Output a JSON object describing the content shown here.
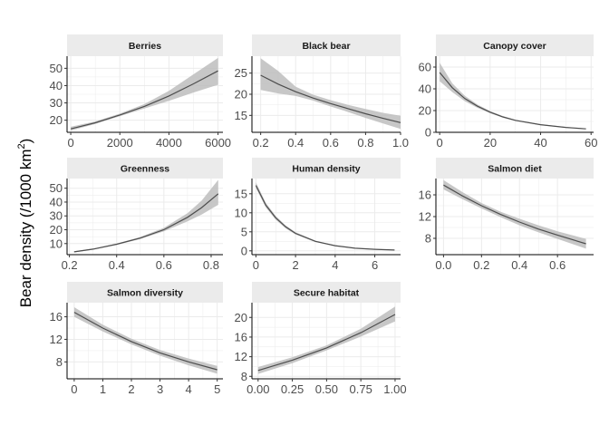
{
  "figure": {
    "ylabel_main": "Bear density (/1000 km",
    "ylabel_sup": "2",
    "ylabel_close": ")",
    "colors": {
      "line": "#4d4d4d",
      "band": "#bdbdbd",
      "strip": "#ebebeb",
      "grid": "#ebebeb",
      "axis": "#000000"
    }
  },
  "chart_data": [
    {
      "type": "line",
      "title": "Berries",
      "xlim": [
        -150,
        6200
      ],
      "ylim": [
        13,
        57
      ],
      "xticks": [
        0,
        2000,
        4000,
        6000
      ],
      "xtick_labels": [
        "0",
        "2000",
        "4000",
        "6000"
      ],
      "yticks": [
        20,
        30,
        40,
        50
      ],
      "ytick_labels": [
        "20",
        "30",
        "40",
        "50"
      ],
      "x": [
        0,
        1000,
        2000,
        3000,
        4000,
        5000,
        6000
      ],
      "y": [
        15,
        18.5,
        23,
        28,
        34,
        41,
        48.5
      ],
      "lower": [
        14,
        17.8,
        22.3,
        26.8,
        31.2,
        36,
        40.5
      ],
      "upper": [
        16.2,
        19.3,
        23.8,
        29.3,
        37,
        46.5,
        56
      ]
    },
    {
      "type": "line",
      "title": "Black bear",
      "xlim": [
        0.15,
        1.0
      ],
      "ylim": [
        11,
        29
      ],
      "xticks": [
        0.2,
        0.4,
        0.6,
        0.8,
        1.0
      ],
      "xtick_labels": [
        "0.2",
        "0.4",
        "0.6",
        "0.8",
        "1.0"
      ],
      "yticks": [
        15,
        20,
        25
      ],
      "ytick_labels": [
        "15",
        "20",
        "25"
      ],
      "x": [
        0.2,
        0.3,
        0.4,
        0.5,
        0.6,
        0.7,
        0.8,
        0.9,
        1.0
      ],
      "y": [
        24.5,
        22.4,
        20.6,
        19.1,
        17.8,
        16.6,
        15.4,
        14.3,
        13.3
      ],
      "lower": [
        21,
        20.2,
        19.6,
        18.5,
        17.1,
        15.8,
        14.4,
        13.1,
        11.8
      ],
      "upper": [
        28.5,
        25.5,
        21.8,
        19.9,
        18.6,
        17.5,
        16.5,
        15.6,
        14.9
      ]
    },
    {
      "type": "line",
      "title": "Canopy cover",
      "xlim": [
        -1.5,
        61
      ],
      "ylim": [
        0,
        70
      ],
      "xticks": [
        0,
        20,
        40,
        60
      ],
      "xtick_labels": [
        "0",
        "20",
        "40",
        "60"
      ],
      "yticks": [
        0,
        20,
        40,
        60
      ],
      "ytick_labels": [
        "0",
        "20",
        "40",
        "60"
      ],
      "x": [
        0,
        5,
        10,
        15,
        20,
        25,
        30,
        40,
        50,
        58
      ],
      "y": [
        55,
        41,
        31,
        24,
        18.5,
        14.2,
        11,
        7,
        4.5,
        3.2
      ],
      "lower": [
        47,
        37,
        28.5,
        22.5,
        17.5,
        13.5,
        10.5,
        6.6,
        4.2,
        2.9
      ],
      "upper": [
        64,
        45,
        33.5,
        25.5,
        19.5,
        15,
        11.6,
        7.5,
        4.9,
        3.6
      ]
    },
    {
      "type": "line",
      "title": "Greenness",
      "xlim": [
        0.19,
        0.85
      ],
      "ylim": [
        2,
        57
      ],
      "xticks": [
        0.2,
        0.4,
        0.6,
        0.8
      ],
      "xtick_labels": [
        "0.2",
        "0.4",
        "0.6",
        "0.8"
      ],
      "yticks": [
        10,
        20,
        30,
        40,
        50
      ],
      "ytick_labels": [
        "10",
        "20",
        "30",
        "40",
        "50"
      ],
      "x": [
        0.22,
        0.3,
        0.4,
        0.5,
        0.6,
        0.7,
        0.76,
        0.83
      ],
      "y": [
        4,
        6,
        9.5,
        14,
        20,
        29,
        36,
        46
      ],
      "lower": [
        3.6,
        5.6,
        9,
        13.3,
        18.8,
        26,
        31,
        38
      ],
      "upper": [
        4.4,
        6.4,
        10,
        14.8,
        21.4,
        32,
        41,
        56
      ]
    },
    {
      "type": "line",
      "title": "Human density",
      "xlim": [
        -0.2,
        7.3
      ],
      "ylim": [
        -1,
        19
      ],
      "xticks": [
        0,
        2,
        4,
        6
      ],
      "xtick_labels": [
        "0",
        "2",
        "4",
        "6"
      ],
      "yticks": [
        0,
        5,
        10,
        15
      ],
      "ytick_labels": [
        "0",
        "5",
        "10",
        "15"
      ],
      "x": [
        0,
        0.5,
        1,
        1.5,
        2,
        3,
        4,
        5,
        6,
        7
      ],
      "y": [
        17.2,
        12,
        8.7,
        6.3,
        4.6,
        2.5,
        1.35,
        0.7,
        0.4,
        0.22
      ],
      "lower": [
        16.5,
        11.4,
        8.2,
        5.9,
        4.3,
        2.3,
        1.25,
        0.65,
        0.36,
        0.2
      ],
      "upper": [
        18,
        12.6,
        9.2,
        6.7,
        4.9,
        2.7,
        1.45,
        0.78,
        0.44,
        0.25
      ]
    },
    {
      "type": "line",
      "title": "Salmon diet",
      "xlim": [
        -0.04,
        0.79
      ],
      "ylim": [
        5,
        19
      ],
      "xticks": [
        0,
        0.2,
        0.4,
        0.6
      ],
      "xtick_labels": [
        "0.0",
        "0.2",
        "0.4",
        "0.6"
      ],
      "yticks": [
        8,
        12,
        16
      ],
      "ytick_labels": [
        "8",
        "12",
        "16"
      ],
      "x": [
        0,
        0.1,
        0.2,
        0.3,
        0.4,
        0.5,
        0.6,
        0.75
      ],
      "y": [
        17.8,
        15.8,
        14,
        12.4,
        11,
        9.7,
        8.6,
        7
      ],
      "lower": [
        17,
        15.2,
        13.5,
        11.9,
        10.4,
        9.1,
        7.9,
        6.1
      ],
      "upper": [
        18.7,
        16.5,
        14.5,
        12.9,
        11.6,
        10.4,
        9.3,
        7.9
      ]
    },
    {
      "type": "line",
      "title": "Salmon diversity",
      "xlim": [
        -0.25,
        5.2
      ],
      "ylim": [
        5,
        18.5
      ],
      "xticks": [
        0,
        1,
        2,
        3,
        4,
        5
      ],
      "xtick_labels": [
        "0",
        "1",
        "2",
        "3",
        "4",
        "5"
      ],
      "yticks": [
        8,
        12,
        16
      ],
      "ytick_labels": [
        "8",
        "12",
        "16"
      ],
      "x": [
        0,
        1,
        2,
        3,
        4,
        5
      ],
      "y": [
        16.8,
        14,
        11.6,
        9.6,
        8,
        6.6
      ],
      "lower": [
        16,
        13.4,
        11.1,
        9.1,
        7.4,
        5.9
      ],
      "upper": [
        17.7,
        14.6,
        12.1,
        10.1,
        8.6,
        7.3
      ]
    },
    {
      "type": "line",
      "title": "Secure habitat",
      "xlim": [
        -0.045,
        1.04
      ],
      "ylim": [
        7.5,
        23
      ],
      "xticks": [
        0,
        0.25,
        0.5,
        0.75,
        1.0
      ],
      "xtick_labels": [
        "0.00",
        "0.25",
        "0.50",
        "0.75",
        "1.00"
      ],
      "yticks": [
        8,
        12,
        16,
        20
      ],
      "ytick_labels": [
        "8",
        "12",
        "16",
        "20"
      ],
      "x": [
        0,
        0.25,
        0.5,
        0.75,
        1.0
      ],
      "y": [
        9.2,
        11.3,
        13.8,
        16.9,
        20.6
      ],
      "lower": [
        8.5,
        10.7,
        13.3,
        16.1,
        19.2
      ],
      "upper": [
        9.9,
        11.9,
        14.3,
        17.7,
        22.2
      ]
    }
  ]
}
